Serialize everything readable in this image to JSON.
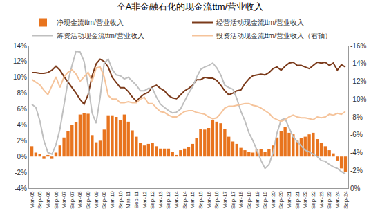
{
  "chart_data": {
    "type": "bar",
    "title": "全A非金融石化的现金流ttm/营业收入",
    "categories": [
      "Mar-05",
      null,
      "Sep-05",
      null,
      "Mar-06",
      null,
      "Sep-06",
      null,
      "Mar-07",
      null,
      "Sep-07",
      null,
      "Mar-08",
      null,
      "Sep-08",
      null,
      "Mar-09",
      null,
      "Sep-09",
      null,
      "Mar-10",
      null,
      "Sep-10",
      null,
      "Mar-11",
      null,
      "Sep-11",
      null,
      "Mar-12",
      null,
      "Sep-12",
      null,
      "Mar-13",
      null,
      "Sep-13",
      null,
      "Mar-14",
      null,
      "Sep-14",
      null,
      "Mar-15",
      null,
      "Sep-15",
      null,
      "Mar-16",
      null,
      "Sep-16",
      null,
      "Mar-17",
      null,
      "Sep-17",
      null,
      "Mar-18",
      null,
      "Sep-18",
      null,
      "Mar-19",
      null,
      "Sep-19",
      null,
      "Mar-20",
      null,
      "Sep-20",
      null,
      "Mar-21",
      null,
      "Sep-21",
      null,
      "Mar-22",
      null,
      "Sep-22",
      null,
      "Mar-23",
      null,
      "Sep-23",
      null,
      "Mar-24",
      null,
      "Sep-24"
    ],
    "series": [
      {
        "name": "净现金流ttm/营业收入",
        "type": "bar",
        "color": "#E8741E",
        "values": [
          1.3,
          0.5,
          0.3,
          -0.3,
          0.2,
          -0.3,
          0.5,
          1.4,
          2.4,
          3.2,
          4.0,
          4.3,
          5.3,
          5.5,
          5.4,
          2.7,
          1.8,
          2.0,
          3.4,
          5.2,
          5.2,
          5.0,
          4.6,
          5.3,
          4.4,
          3.3,
          2.5,
          1.7,
          1.4,
          1.6,
          1.7,
          1.3,
          1.0,
          1.0,
          1.0,
          0.6,
          0.2,
          0.8,
          1.0,
          1.2,
          1.6,
          2.3,
          3.5,
          3.4,
          3.6,
          4.6,
          4.4,
          4.2,
          3.5,
          2.5,
          1.9,
          1.6,
          1.1,
          0.8,
          0.6,
          0.5,
          0.9,
          0.9,
          0.6,
          0.9,
          1.4,
          2.4,
          3.2,
          3.7,
          3.0,
          2.8,
          2.0,
          2.3,
          2.5,
          2.8,
          3.0,
          2.2,
          1.7,
          1.3,
          0.8,
          0.4,
          -0.5,
          -1.5,
          -1.9
        ]
      },
      {
        "name": "经营活动现金流ttm/营业收入",
        "type": "line",
        "color": "#7B3A1A",
        "values": [
          10.6,
          10.6,
          10.5,
          10.5,
          10.6,
          10.9,
          11.4,
          10.9,
          10.1,
          9.4,
          8.8,
          8.0,
          7.2,
          6.6,
          7.8,
          10.2,
          11.7,
          12.3,
          12.0,
          11.3,
          10.0,
          9.4,
          8.7,
          8.7,
          8.2,
          7.5,
          7.0,
          7.5,
          7.9,
          8.1,
          8.8,
          9.0,
          8.6,
          8.3,
          7.7,
          7.4,
          7.3,
          7.8,
          8.3,
          8.6,
          9.0,
          9.7,
          9.7,
          10.0,
          9.9,
          9.9,
          9.6,
          9.0,
          8.3,
          7.8,
          8.0,
          8.3,
          8.4,
          9.2,
          9.8,
          10.2,
          10.3,
          10.4,
          10.3,
          10.6,
          11.1,
          11.3,
          10.9,
          11.4,
          11.8,
          11.9,
          11.5,
          11.5,
          11.3,
          11.1,
          11.5,
          11.9,
          11.8,
          11.9,
          11.5,
          11.8,
          10.9,
          11.6,
          11.3
        ]
      },
      {
        "name": "筹资活动现金流ttm/营业收入",
        "type": "line",
        "color": "#BFBFBF",
        "values": [
          6.6,
          6.2,
          4.5,
          2.0,
          0.5,
          0.3,
          1.5,
          3.5,
          6.5,
          9.5,
          11.5,
          13.3,
          13.2,
          12.0,
          9.0,
          5.5,
          4.2,
          7.5,
          11.8,
          12.3,
          11.0,
          10.3,
          10.2,
          9.8,
          10.0,
          9.5,
          9.0,
          8.3,
          8.3,
          8.6,
          8.6,
          7.5,
          6.6,
          6.2,
          5.8,
          5.5,
          5.6,
          6.0,
          7.0,
          8.0,
          8.8,
          10.0,
          11.0,
          11.3,
          11.5,
          11.8,
          11.2,
          10.3,
          9.0,
          8.7,
          8.5,
          7.3,
          5.7,
          4.5,
          3.0,
          2.0,
          0.8,
          -0.5,
          -1.5,
          -1.0,
          0.5,
          3.0,
          4.6,
          4.8,
          3.6,
          2.5,
          1.9,
          1.3,
          0.8,
          0.6,
          0.3,
          0.0,
          -0.5,
          -0.6,
          -1.0,
          -1.3,
          -1.5,
          -1.9,
          -2.2
        ]
      },
      {
        "name": "投资活动现金流ttm/营业收入（右轴）",
        "type": "line",
        "color": "#F5C39A",
        "axis": "y2",
        "values": [
          -12.2,
          -11.9,
          -11.6,
          -11.0,
          -10.5,
          -11.5,
          -12.5,
          -11.3,
          -12.5,
          -13.0,
          -13.3,
          -12.8,
          -12.0,
          -12.5,
          -13.0,
          -12.0,
          -13.5,
          -13.6,
          -12.5,
          -10.4,
          -10.0,
          -10.0,
          -9.6,
          -9.6,
          -9.7,
          -9.6,
          -9.6,
          -10.0,
          -10.2,
          -9.5,
          -9.5,
          -9.0,
          -8.6,
          -8.5,
          -8.2,
          -8.0,
          -8.0,
          -8.3,
          -8.6,
          -8.7,
          -8.7,
          -8.5,
          -8.4,
          -8.3,
          -8.0,
          -7.8,
          -7.9,
          -8.4,
          -9.0,
          -9.2,
          -9.2,
          -9.3,
          -9.4,
          -9.5,
          -9.5,
          -9.3,
          -9.2,
          -9.0,
          -8.7,
          -8.4,
          -7.9,
          -7.7,
          -7.5,
          -7.7,
          -8.0,
          -8.2,
          -8.0,
          -7.9,
          -7.9,
          -7.8,
          -7.7,
          -8.0,
          -7.9,
          -8.0,
          -8.3,
          -8.2,
          -8.4,
          -8.3,
          -8.6
        ]
      }
    ],
    "ylim": [
      -4,
      14
    ],
    "yticks": [
      {
        "value": -4,
        "label": "-4%"
      },
      {
        "value": -2,
        "label": "-2%"
      },
      {
        "value": 0,
        "label": "0%"
      },
      {
        "value": 2,
        "label": "2%"
      },
      {
        "value": 4,
        "label": "4%"
      },
      {
        "value": 6,
        "label": "6%"
      },
      {
        "value": 8,
        "label": "8%"
      },
      {
        "value": 10,
        "label": "10%"
      },
      {
        "value": 12,
        "label": "12%"
      },
      {
        "value": 14,
        "label": "14%"
      }
    ],
    "y2lim": [
      0,
      -16
    ],
    "y2ticks": [
      {
        "value": 0,
        "label": "0%"
      },
      {
        "value": -2,
        "label": "-2%"
      },
      {
        "value": -4,
        "label": "-4%"
      },
      {
        "value": -6,
        "label": "-6%"
      },
      {
        "value": -8,
        "label": "-8%"
      },
      {
        "value": -10,
        "label": "-10%"
      },
      {
        "value": -12,
        "label": "-12%"
      },
      {
        "value": -14,
        "label": "-14%"
      },
      {
        "value": -16,
        "label": "-16%"
      }
    ],
    "grid": false,
    "legend": "top"
  }
}
